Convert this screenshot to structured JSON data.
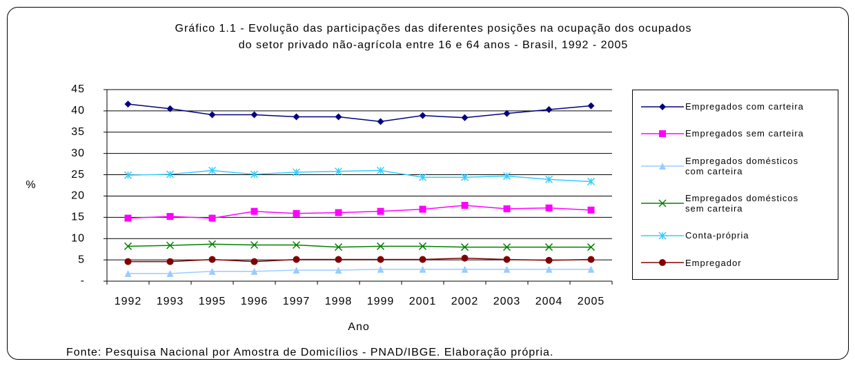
{
  "chart_data": {
    "type": "line",
    "title": [
      "Gráfico 1.1 - Evolução das participações das diferentes posições na ocupação dos ocupados",
      "do setor privado não-agrícola entre 16 e 64 anos - Brasil, 1992 - 2005"
    ],
    "x_label": "Ano",
    "y_label": "%",
    "source": "Fonte: Pesquisa Nacional por Amostra de Domicílios - PNAD/IBGE. Elaboração própria.",
    "categories": [
      "1992",
      "1993",
      "1995",
      "1996",
      "1997",
      "1998",
      "1999",
      "2001",
      "2002",
      "2003",
      "2004",
      "2005"
    ],
    "ylim": [
      0,
      45
    ],
    "yticks": [
      {
        "value": 0,
        "label": "-"
      },
      5,
      10,
      15,
      20,
      25,
      30,
      35,
      40,
      45
    ],
    "grid": true,
    "legend": "right",
    "series": [
      {
        "name": "Empregados com carteira",
        "color": "#000080",
        "marker": "diamond",
        "values": [
          41.6,
          40.5,
          39.1,
          39.1,
          38.6,
          38.6,
          37.5,
          38.9,
          38.4,
          39.4,
          40.3,
          41.2
        ]
      },
      {
        "name": "Empregados sem carteira",
        "color": "#ff00ff",
        "marker": "square",
        "values": [
          14.8,
          15.2,
          14.8,
          16.4,
          15.9,
          16.1,
          16.4,
          16.9,
          17.8,
          17.0,
          17.2,
          16.7
        ]
      },
      {
        "name": "Empregados domésticos com carteira",
        "color": "#99ccff",
        "marker": "triangle",
        "values": [
          1.8,
          1.8,
          2.3,
          2.3,
          2.6,
          2.6,
          2.8,
          2.8,
          2.8,
          2.8,
          2.8,
          2.8
        ]
      },
      {
        "name": "Empregados domésticos sem carteira",
        "color": "#008000",
        "marker": "x",
        "values": [
          8.2,
          8.4,
          8.7,
          8.5,
          8.5,
          8.0,
          8.2,
          8.2,
          8.0,
          8.0,
          8.0,
          8.0
        ]
      },
      {
        "name": "Conta-própria",
        "color": "#33ccff",
        "marker": "star",
        "values": [
          24.9,
          25.1,
          26.0,
          25.1,
          25.6,
          25.8,
          26.0,
          24.4,
          24.4,
          24.7,
          23.9,
          23.4
        ]
      },
      {
        "name": "Empregador",
        "color": "#800000",
        "marker": "circle",
        "values": [
          4.6,
          4.6,
          5.1,
          4.6,
          5.1,
          5.1,
          5.1,
          5.1,
          5.4,
          5.1,
          4.9,
          5.1
        ]
      }
    ]
  }
}
